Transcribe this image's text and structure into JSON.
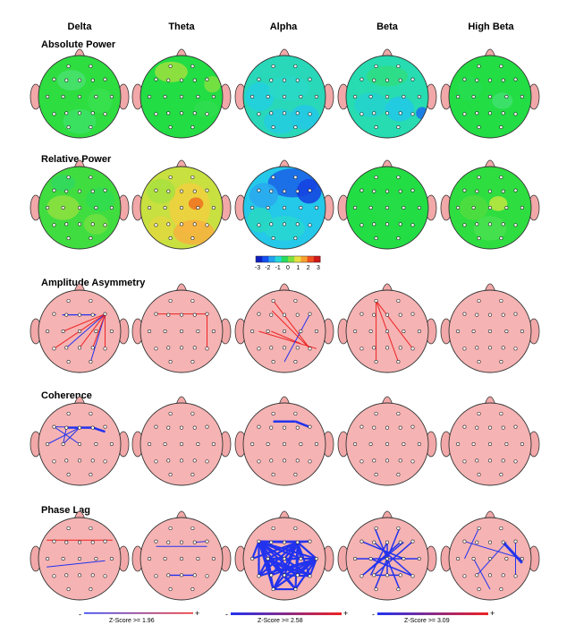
{
  "bands": [
    "Delta",
    "Theta",
    "Alpha",
    "Beta",
    "High Beta"
  ],
  "rows": [
    {
      "label": "Absolute Power",
      "type": "power"
    },
    {
      "label": "Relative Power",
      "type": "power"
    },
    {
      "label": "Amplitude Asymmetry",
      "type": "connect"
    },
    {
      "label": "Coherence",
      "type": "connect"
    },
    {
      "label": "Phase Lag",
      "type": "connect"
    }
  ],
  "colorbar": {
    "ticks": [
      "-3",
      "-2",
      "-1",
      "0",
      "1",
      "2",
      "3"
    ]
  },
  "zscore_legends": [
    {
      "label": "Z-Score >= 1.96",
      "minus": "-",
      "plus": "+"
    },
    {
      "label": "Z-Score >= 2.58",
      "minus": "-",
      "plus": "+"
    },
    {
      "label": "Z-Score >= 3.09",
      "minus": "-",
      "plus": "+"
    }
  ],
  "colors": {
    "head_pink": "#f6b3b3",
    "green": "#22dd44",
    "red_line": "#ee2222",
    "blue_line": "#2233ee"
  }
}
